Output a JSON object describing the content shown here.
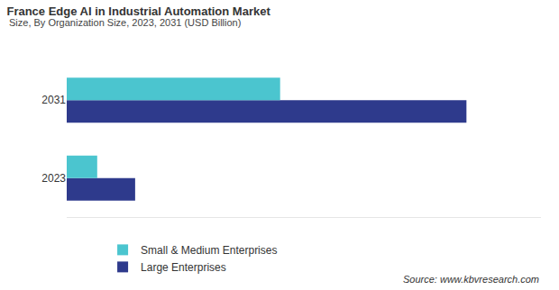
{
  "chart_data": {
    "type": "bar",
    "title": "France Edge AI in Industrial Automation Market",
    "subtitle": "Size, By Organization Size, 2023, 2031 (USD Billion)",
    "orientation": "horizontal",
    "categories": [
      "2023",
      "2031"
    ],
    "series": [
      {
        "name": "Small & Medium Enterprises",
        "color": "#4bc5cf",
        "values": [
          0.45,
          3.15
        ]
      },
      {
        "name": "Large Enterprises",
        "color": "#2e3a8c",
        "values": [
          1.01,
          5.9
        ]
      }
    ],
    "xlim": [
      0,
      7
    ],
    "tick_labels": "y",
    "grid": false,
    "legend": "bottom",
    "annotations": [
      "Source: www.kbvresearch.com"
    ]
  }
}
